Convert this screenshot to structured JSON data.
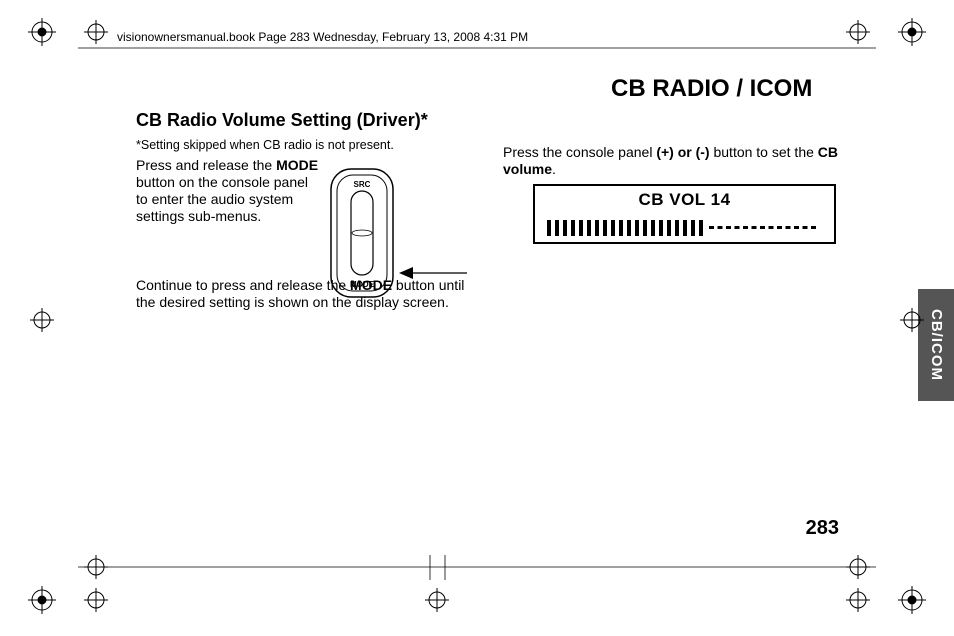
{
  "header": "visionownersmanual.book  Page 283  Wednesday, February 13, 2008  4:31 PM",
  "main_title": "CB RADIO / ICOM",
  "sub_title": "CB Radio Volume Setting (Driver)*",
  "footnote": "*Setting skipped when CB radio is not present.",
  "left_p1_a": "Press and release the ",
  "left_p1_b": "MODE",
  "left_p1_c": " button on the console panel to enter the audio system settings sub-menus.",
  "left_p2_a": "Continue to press and release the ",
  "left_p2_b": "MODE",
  "left_p2_c": " button until the desired setting is shown on the display screen.",
  "right_p_a": "Press the console panel ",
  "right_p_b": "(+) or (-)",
  "right_p_c": " button to set the ",
  "right_p_d": "CB volume",
  "right_p_e": ".",
  "button_top_label": "SRC",
  "button_bottom_label": "MODE",
  "display_title": "CB VOL 14",
  "side_tab": "CB/ICOM",
  "page_number": "283",
  "colors": {
    "tab_bg": "#555555",
    "tab_fg": "#ffffff",
    "text": "#000000"
  }
}
